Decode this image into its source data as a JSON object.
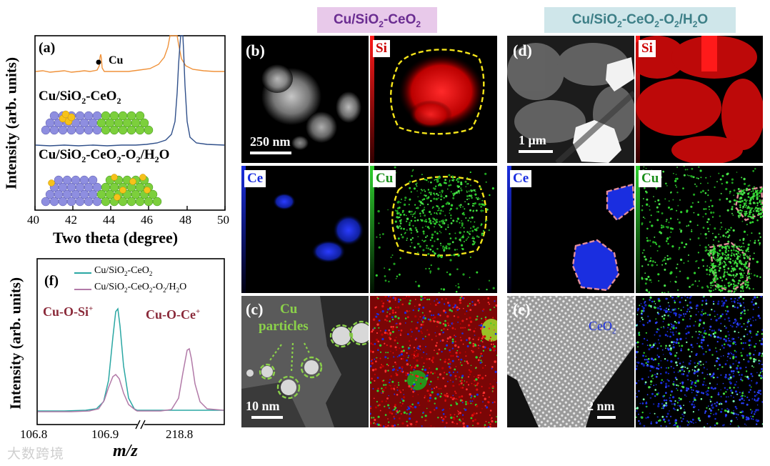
{
  "headers": {
    "left": {
      "main": "Cu/SiO",
      "sub1": "2",
      "tail": "-CeO",
      "sub2": "2"
    },
    "right": {
      "main": "Cu/SiO",
      "sub1": "2",
      "tail": "-CeO",
      "sub2": "2",
      "tail2": "-O",
      "sub3": "2",
      "tail3": "/H",
      "sub4": "2",
      "tail4": "O"
    }
  },
  "colors": {
    "left_header_bg": "#e8c9ea",
    "left_header_text": "#6a2c91",
    "right_header_bg": "#cfe6ea",
    "right_header_text": "#3d7f87",
    "orange_curve": "#f0923a",
    "blue_curve": "#2f4f8a",
    "teal_curve": "#2aa7a3",
    "mauve_curve": "#b27aa8",
    "si_red": "#e01010",
    "ce_blue": "#1a2ee0",
    "cu_green": "#2fd12f"
  },
  "panel_a": {
    "label": "(a)",
    "peak_label": "Cu",
    "sample1": {
      "main": "Cu/SiO",
      "s1": "2",
      "t1": "-CeO",
      "s2": "2"
    },
    "sample2": {
      "main": "Cu/SiO",
      "s1": "2",
      "t1": "-CeO",
      "s2": "2",
      "t2": "-O",
      "s3": "2",
      "t3": "/H",
      "s4": "2",
      "t4": "O"
    },
    "xlabel": "Two theta (degree)",
    "ylabel": "Intensity (arb. units)",
    "xticks": [
      "40",
      "42",
      "44",
      "46",
      "48",
      "50"
    ]
  },
  "panel_b": {
    "label": "(b)",
    "scale": "250 nm",
    "si": "Si",
    "ce": "Ce",
    "cu": "Cu"
  },
  "panel_c": {
    "label": "(c)",
    "annot1": "Cu",
    "annot2": "particles",
    "scale": "10 nm"
  },
  "panel_d": {
    "label": "(d)",
    "scale": "1 μm",
    "si": "Si",
    "ce": "Ce",
    "cu": "Cu"
  },
  "panel_e": {
    "label": "(e)",
    "ceo2": "CeO",
    "ceo2_sub": "2",
    "scale": "2 nm"
  },
  "panel_f": {
    "label": "(f)",
    "legend1": {
      "main": "Cu/SiO",
      "s1": "2",
      "t1": "-CeO",
      "s2": "2"
    },
    "legend2": {
      "main": "Cu/SiO",
      "s1": "2",
      "t1": "-CeO",
      "s2": "2",
      "t2": "-O",
      "s3": "2",
      "t3": "/H",
      "s4": "2",
      "t4": "O"
    },
    "peak1": {
      "main": "Cu-O-Si",
      "sup": "+"
    },
    "peak2": {
      "main": "Cu-O-Ce",
      "sup": "+"
    },
    "ylabel": "Intensity (arb. units)",
    "xlabel": "m/z",
    "xticks": [
      "106.8",
      "106.9",
      "218.8"
    ]
  },
  "watermark": "大数跨境"
}
